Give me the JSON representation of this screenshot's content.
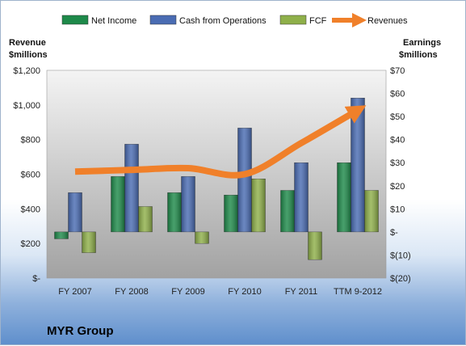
{
  "chart_data": {
    "type": "bar",
    "categories": [
      "FY 2007",
      "FY 2008",
      "FY 2009",
      "FY 2010",
      "FY 2011",
      "TTM 9-2012"
    ],
    "series": [
      {
        "name": "Net Income",
        "axis": "right",
        "color": "#1e8a4a",
        "values": [
          -3,
          24,
          17,
          16,
          18,
          30
        ]
      },
      {
        "name": "Cash from Operations",
        "axis": "right",
        "color": "#4a6cb3",
        "values": [
          17,
          38,
          24,
          45,
          30,
          58
        ]
      },
      {
        "name": "FCF",
        "axis": "right",
        "color": "#8fb04a",
        "values": [
          -9,
          11,
          -5,
          23,
          -12,
          18
        ]
      },
      {
        "name": "Revenues",
        "axis": "left",
        "type": "line",
        "color": "#f0802a",
        "values": [
          615,
          625,
          635,
          600,
          780,
          970
        ]
      }
    ],
    "left_axis": {
      "title_lines": [
        "Revenue",
        "$millions"
      ],
      "ylim": [
        0,
        1200
      ],
      "ticks": [
        0,
        200,
        400,
        600,
        800,
        1000,
        1200
      ],
      "tick_labels": [
        "$-",
        "$200",
        "$400",
        "$600",
        "$800",
        "$1,000",
        "$1,200"
      ]
    },
    "right_axis": {
      "title_lines": [
        "Earnings",
        "$millions"
      ],
      "ylim": [
        -20,
        70
      ],
      "ticks": [
        -20,
        -10,
        0,
        10,
        20,
        30,
        40,
        50,
        60,
        70
      ],
      "tick_labels": [
        "$(20)",
        "$(10)",
        "$-",
        "$10",
        "$20",
        "$30",
        "$40",
        "$50",
        "$60",
        "$70"
      ]
    },
    "legend_position": "top",
    "grid": false
  },
  "company_name": "MYR Group"
}
